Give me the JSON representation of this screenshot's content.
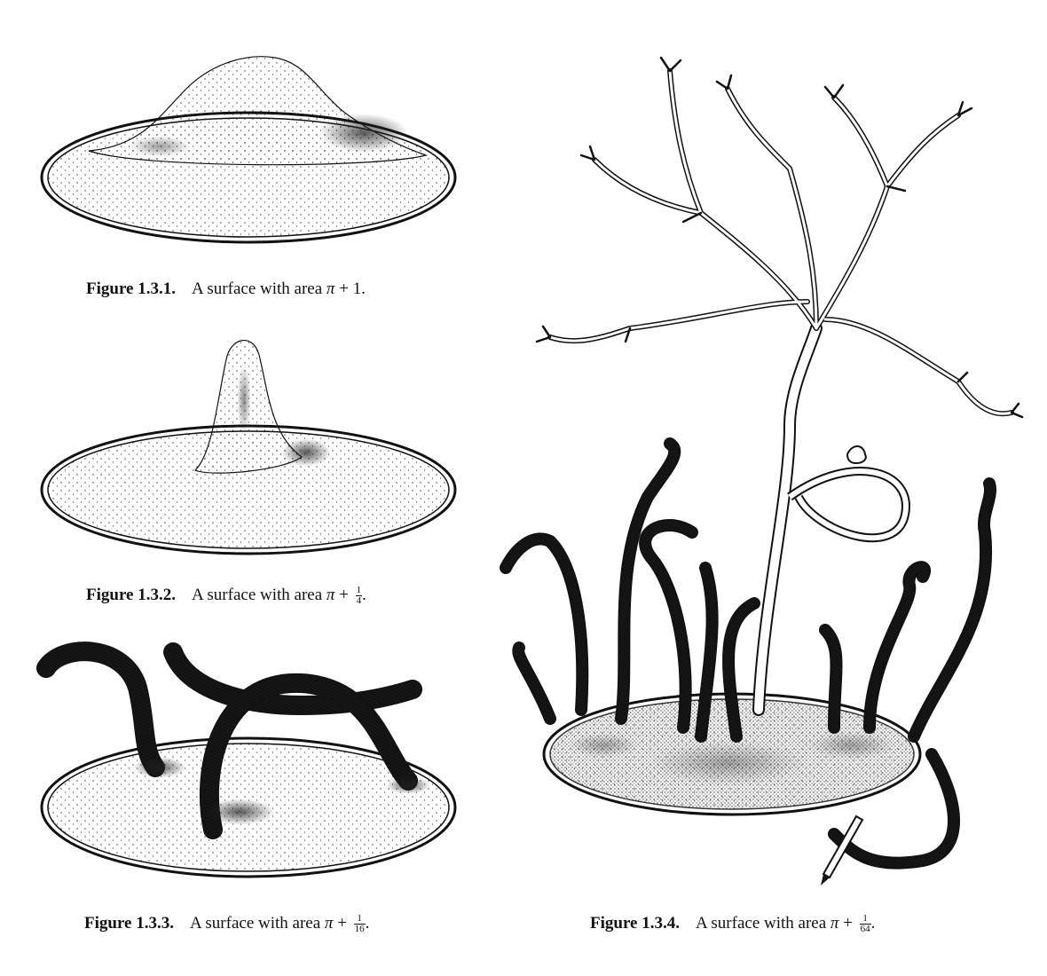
{
  "figures": [
    {
      "label": "Figure 1.3.1.",
      "text": "A surface with area ",
      "pi": "π",
      "plus": "+",
      "int": "1",
      "frac_num": "",
      "frac_den": "",
      "end": "."
    },
    {
      "label": "Figure 1.3.2.",
      "text": "A surface with area ",
      "pi": "π",
      "plus": "+",
      "int": "",
      "frac_num": "1",
      "frac_den": "4",
      "end": "."
    },
    {
      "label": "Figure 1.3.3.",
      "text": "A surface with area ",
      "pi": "π",
      "plus": "+",
      "int": "",
      "frac_num": "1",
      "frac_den": "16",
      "end": "."
    },
    {
      "label": "Figure 1.3.4.",
      "text": "A surface with area ",
      "pi": "π",
      "plus": "+",
      "int": "",
      "frac_num": "1",
      "frac_den": "64",
      "end": "."
    }
  ],
  "colors": {
    "ink": "#111111",
    "paper": "#ffffff",
    "stipple": "#222222"
  }
}
